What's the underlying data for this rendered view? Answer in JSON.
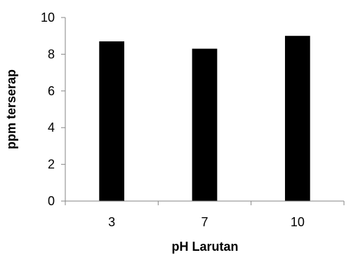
{
  "chart_data": {
    "type": "bar",
    "categories": [
      "3",
      "7",
      "10"
    ],
    "values": [
      8.7,
      8.3,
      9.0
    ],
    "xlabel": "pH Larutan",
    "ylabel": "ppm terserap",
    "ylim": [
      0,
      10
    ],
    "yticks": [
      "0",
      "2",
      "4",
      "6",
      "8",
      "10"
    ],
    "grid": false,
    "legend": "none",
    "bar_color": "#000000",
    "axis_color": "#868686"
  }
}
